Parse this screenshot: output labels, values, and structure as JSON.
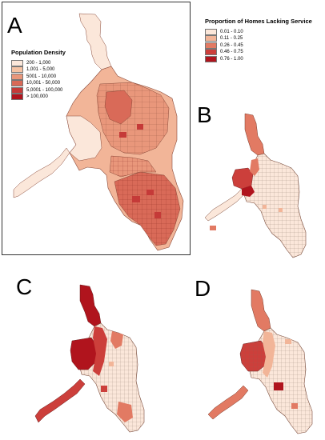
{
  "panel_a": {
    "letter": "A",
    "legend": {
      "title": "Population Density",
      "items": [
        {
          "label": "200 - 1,000",
          "color": "#fbe7da"
        },
        {
          "label": "1,001 - 5,000",
          "color": "#f5c2a3"
        },
        {
          "label": "5001 - 10,000",
          "color": "#e9977b"
        },
        {
          "label": "10,001 - 50,000",
          "color": "#d96a58"
        },
        {
          "label": "5,0001 - 100,000",
          "color": "#c53a38"
        },
        {
          "label": "> 100,000",
          "color": "#b0141d"
        }
      ]
    }
  },
  "service_legend": {
    "title": "Proportion of Homes Lacking Service",
    "items": [
      {
        "label": "0.01 - 0.10",
        "color": "#fbe7da"
      },
      {
        "label": "0.11 - 0.25",
        "color": "#f2b598"
      },
      {
        "label": "0.26 - 0.45",
        "color": "#e27a63"
      },
      {
        "label": "0.46 - 0.75",
        "color": "#cc3f3b"
      },
      {
        "label": "0.76 - 1.00",
        "color": "#b0141d"
      }
    ]
  },
  "panel_b": {
    "letter": "B"
  },
  "panel_c": {
    "letter": "C"
  },
  "panel_d": {
    "letter": "D"
  }
}
